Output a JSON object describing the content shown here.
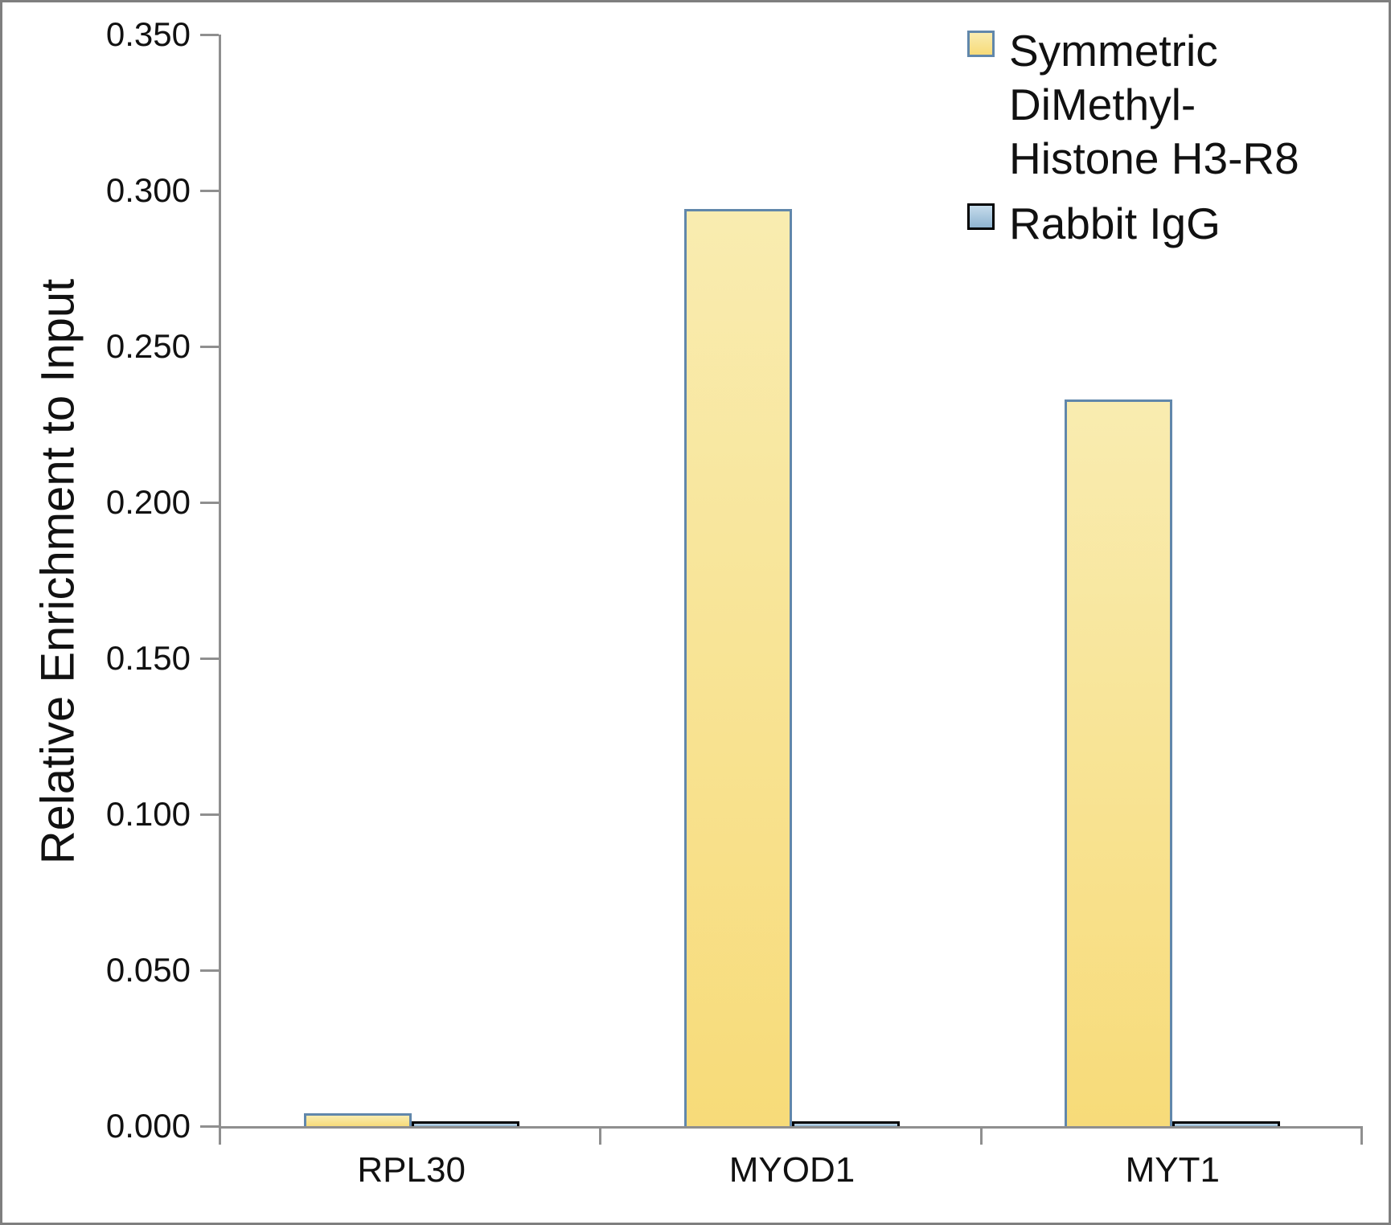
{
  "chart_data": {
    "type": "bar",
    "title": "",
    "xlabel": "",
    "ylabel": "Relative Enrichment to Input",
    "categories": [
      "RPL30",
      "MYOD1",
      "MYT1"
    ],
    "series": [
      {
        "name": "Symmetric DiMethyl-\nHistone H3-R8",
        "values": [
          0.004,
          0.294,
          0.233
        ]
      },
      {
        "name": "Rabbit IgG",
        "values": [
          0.001,
          0.001,
          0.001
        ]
      }
    ],
    "ylim": [
      0,
      0.35
    ],
    "ytick_labels": [
      "0.000",
      "0.050",
      "0.100",
      "0.150",
      "0.200",
      "0.250",
      "0.300",
      "0.350"
    ],
    "grid": false,
    "legend_position": "top-right"
  },
  "colors": {
    "h3r8_fill_top": "#F9ECB0",
    "h3r8_fill_bottom": "#F7DB79",
    "h3r8_border": "#6187AB",
    "igg_fill_top": "#C6DCEC",
    "igg_fill_bottom": "#8FB4D0",
    "igg_border": "#000000",
    "axis": "#8F8F8F",
    "frame": "#7F7F7F",
    "text": "#111111"
  }
}
